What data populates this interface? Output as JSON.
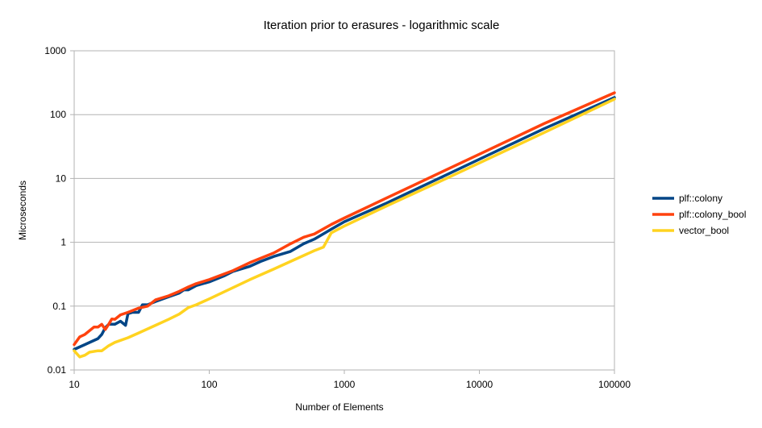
{
  "chart_data": {
    "type": "line",
    "title": "Iteration prior to erasures - logarithmic scale",
    "xlabel": "Number of Elements",
    "ylabel": "Microseconds",
    "x_scale": "log",
    "y_scale": "log",
    "xlim": [
      10,
      100000
    ],
    "ylim": [
      0.01,
      1000
    ],
    "x_ticks": [
      "10",
      "100",
      "1000",
      "10000",
      "100000"
    ],
    "y_ticks": [
      "0.01",
      "0.1",
      "1",
      "10",
      "100",
      "1000"
    ],
    "grid": "horizontal major gridlines",
    "legend_position": "right",
    "series": [
      {
        "name": "plf::colony",
        "color": "#004586",
        "points": [
          [
            10,
            0.021
          ],
          [
            12,
            0.025
          ],
          [
            14,
            0.029
          ],
          [
            15,
            0.031
          ],
          [
            16,
            0.036
          ],
          [
            17,
            0.046
          ],
          [
            18,
            0.052
          ],
          [
            20,
            0.052
          ],
          [
            22,
            0.058
          ],
          [
            24,
            0.05
          ],
          [
            25,
            0.076
          ],
          [
            27,
            0.08
          ],
          [
            30,
            0.08
          ],
          [
            32,
            0.105
          ],
          [
            35,
            0.105
          ],
          [
            40,
            0.118
          ],
          [
            50,
            0.14
          ],
          [
            60,
            0.16
          ],
          [
            65,
            0.18
          ],
          [
            70,
            0.18
          ],
          [
            80,
            0.21
          ],
          [
            100,
            0.24
          ],
          [
            130,
            0.3
          ],
          [
            150,
            0.35
          ],
          [
            200,
            0.42
          ],
          [
            240,
            0.5
          ],
          [
            300,
            0.6
          ],
          [
            400,
            0.72
          ],
          [
            500,
            0.95
          ],
          [
            600,
            1.12
          ],
          [
            800,
            1.6
          ],
          [
            1000,
            2.1
          ],
          [
            2000,
            4.0
          ],
          [
            5000,
            10
          ],
          [
            10000,
            20
          ],
          [
            30000,
            60
          ],
          [
            100000,
            185
          ]
        ]
      },
      {
        "name": "plf::colony_bool",
        "color": "#ff420e",
        "points": [
          [
            10,
            0.025
          ],
          [
            11,
            0.033
          ],
          [
            12,
            0.036
          ],
          [
            14,
            0.047
          ],
          [
            15,
            0.047
          ],
          [
            16,
            0.052
          ],
          [
            17,
            0.043
          ],
          [
            18,
            0.052
          ],
          [
            19,
            0.063
          ],
          [
            20,
            0.062
          ],
          [
            22,
            0.073
          ],
          [
            25,
            0.08
          ],
          [
            30,
            0.093
          ],
          [
            35,
            0.1
          ],
          [
            40,
            0.125
          ],
          [
            50,
            0.145
          ],
          [
            60,
            0.17
          ],
          [
            70,
            0.2
          ],
          [
            80,
            0.225
          ],
          [
            100,
            0.26
          ],
          [
            150,
            0.36
          ],
          [
            200,
            0.48
          ],
          [
            300,
            0.68
          ],
          [
            400,
            0.95
          ],
          [
            500,
            1.2
          ],
          [
            600,
            1.35
          ],
          [
            800,
            1.9
          ],
          [
            1000,
            2.4
          ],
          [
            2000,
            4.8
          ],
          [
            5000,
            12
          ],
          [
            10000,
            24
          ],
          [
            30000,
            72
          ],
          [
            100000,
            220
          ]
        ]
      },
      {
        "name": "vector_bool",
        "color": "#ffd320",
        "points": [
          [
            10,
            0.02
          ],
          [
            11,
            0.016
          ],
          [
            12,
            0.017
          ],
          [
            13,
            0.019
          ],
          [
            15,
            0.02
          ],
          [
            16,
            0.02
          ],
          [
            18,
            0.024
          ],
          [
            20,
            0.027
          ],
          [
            25,
            0.032
          ],
          [
            30,
            0.038
          ],
          [
            40,
            0.05
          ],
          [
            50,
            0.062
          ],
          [
            60,
            0.075
          ],
          [
            65,
            0.085
          ],
          [
            70,
            0.095
          ],
          [
            80,
            0.105
          ],
          [
            100,
            0.13
          ],
          [
            200,
            0.26
          ],
          [
            300,
            0.38
          ],
          [
            400,
            0.5
          ],
          [
            500,
            0.62
          ],
          [
            600,
            0.74
          ],
          [
            700,
            0.84
          ],
          [
            800,
            1.4
          ],
          [
            900,
            1.6
          ],
          [
            1000,
            1.8
          ],
          [
            2000,
            3.6
          ],
          [
            5000,
            8.8
          ],
          [
            10000,
            17.5
          ],
          [
            30000,
            52
          ],
          [
            100000,
            175
          ]
        ]
      }
    ]
  }
}
